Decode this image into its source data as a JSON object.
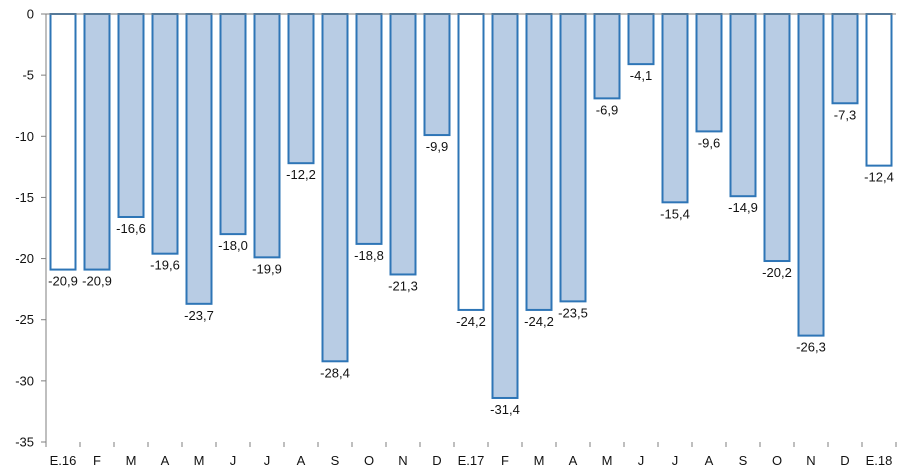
{
  "colors": {
    "bar_fill": "#b8cce4",
    "bar_fill_highlight": "#ffffff",
    "bar_stroke": "#2e75b6",
    "axis": "#7f7f7f"
  },
  "chart_data": {
    "type": "bar",
    "title": "",
    "xlabel": "",
    "ylabel": "",
    "ylim": [
      -35,
      0
    ],
    "yticks": [
      0,
      -5,
      -10,
      -15,
      -20,
      -25,
      -30,
      -35
    ],
    "grid": false,
    "legend": "none",
    "categories": [
      "E.16",
      "F",
      "M",
      "A",
      "M",
      "J",
      "J",
      "A",
      "S",
      "O",
      "N",
      "D",
      "E.17",
      "F",
      "M",
      "A",
      "M",
      "J",
      "J",
      "A",
      "S",
      "O",
      "N",
      "D",
      "E.18"
    ],
    "values": [
      -20.9,
      -20.9,
      -16.6,
      -19.6,
      -23.7,
      -18.0,
      -19.9,
      -12.2,
      -28.4,
      -18.8,
      -21.3,
      -9.9,
      -24.2,
      -31.4,
      -24.2,
      -23.5,
      -6.9,
      -4.1,
      -15.4,
      -9.6,
      -14.9,
      -20.2,
      -26.3,
      -7.3,
      -12.4
    ],
    "labels": [
      "-20,9",
      "-20,9",
      "-16,6",
      "-19,6",
      "-23,7",
      "-18,0",
      "-19,9",
      "-12,2",
      "-28,4",
      "-18,8",
      "-21,3",
      "-9,9",
      "-24,2",
      "-31,4",
      "-24,2",
      "-23,5",
      "-6,9",
      "-4,1",
      "-15,4",
      "-9,6",
      "-14,9",
      "-20,2",
      "-26,3",
      "-7,3",
      "-12,4"
    ],
    "highlighted": [
      true,
      false,
      false,
      false,
      false,
      false,
      false,
      false,
      false,
      false,
      false,
      false,
      true,
      false,
      false,
      false,
      false,
      false,
      false,
      false,
      false,
      false,
      false,
      false,
      true
    ]
  }
}
